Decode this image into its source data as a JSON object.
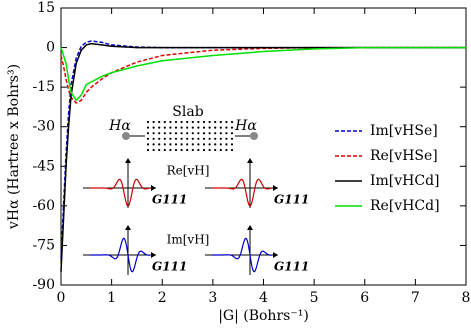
{
  "chart_data": {
    "type": "line",
    "x_label": "|G| (Bohrs⁻¹)",
    "y_label": "vHα (Hartree x Bohrs³)",
    "x": [
      0,
      0.05,
      0.1,
      0.15,
      0.2,
      0.3,
      0.4,
      0.5,
      0.6,
      0.8,
      1.0,
      1.5,
      2,
      3,
      4,
      5,
      6,
      7,
      8
    ],
    "series": [
      {
        "name": "Im[vHSe]",
        "color": "#0000cc",
        "style": "dashed",
        "values": [
          -80,
          -60,
          -40,
          -25,
          -14,
          -4,
          0.5,
          2,
          2.5,
          2,
          1,
          0.2,
          0,
          0,
          0,
          0,
          0,
          0,
          0
        ]
      },
      {
        "name": "Re[vHSe]",
        "color": "#e00000",
        "style": "dashed",
        "values": [
          -3,
          -7,
          -12,
          -16,
          -19,
          -21,
          -20,
          -17,
          -15,
          -12,
          -9.5,
          -5.5,
          -3,
          -1,
          -0.3,
          0,
          0,
          0,
          0
        ]
      },
      {
        "name": "Im[vHCd]",
        "color": "#000000",
        "style": "solid",
        "values": [
          -85,
          -65,
          -45,
          -30,
          -18,
          -6,
          -1,
          1,
          1.5,
          1,
          0.5,
          0,
          0,
          0,
          0,
          0,
          0,
          0,
          0
        ]
      },
      {
        "name": "Re[vHCd]",
        "color": "#00e000",
        "style": "solid",
        "values": [
          0,
          -3,
          -6,
          -12,
          -17,
          -20,
          -18,
          -14,
          -13,
          -11,
          -9.5,
          -7,
          -5,
          -3,
          -1.5,
          -0.5,
          0,
          0,
          0
        ]
      }
    ],
    "xlim": [
      0,
      8
    ],
    "xticks": [
      0,
      1,
      2,
      3,
      4,
      5,
      6,
      7,
      8
    ],
    "ylim": [
      -90,
      15
    ],
    "yticks": [
      -90,
      -75,
      -60,
      -45,
      -30,
      -15,
      0,
      15
    ],
    "legend": "right",
    "annotations": [
      "Slab",
      "Hα",
      "Hα",
      "Re[vH]",
      "Im[vH]",
      "G111",
      "G111",
      "G111",
      "G111"
    ]
  }
}
